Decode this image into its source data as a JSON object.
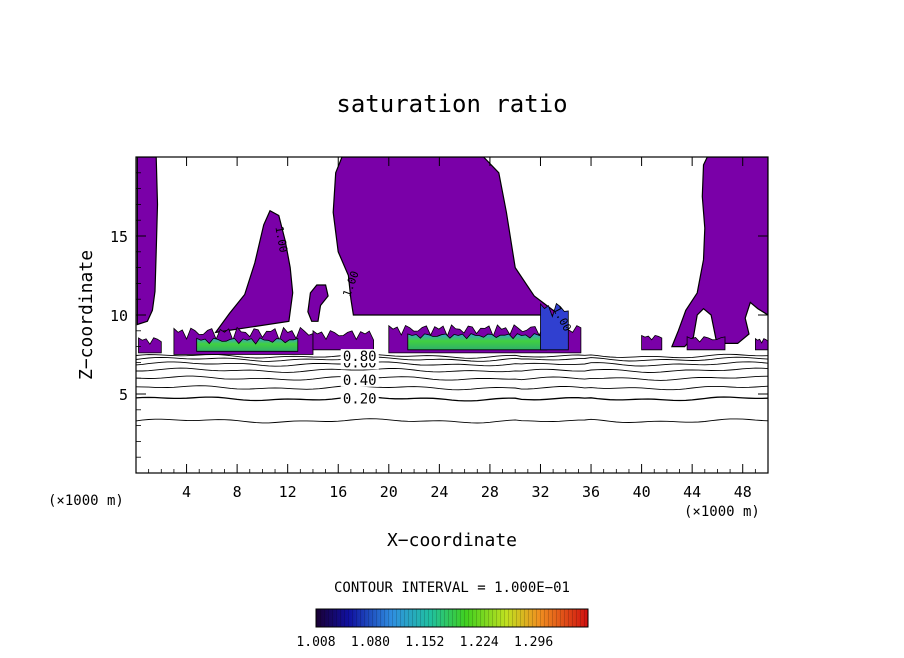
{
  "chart_data": {
    "type": "contour",
    "title": "saturation ratio",
    "xlabel": "X−coordinate",
    "ylabel": "Z−coordinate",
    "x_unit_left": "(×1000 m)",
    "x_unit_right": "(×1000 m)",
    "xlim": [
      0,
      50
    ],
    "ylim": [
      0,
      20
    ],
    "x_ticks": [
      4,
      8,
      12,
      16,
      20,
      24,
      28,
      32,
      36,
      40,
      44,
      48
    ],
    "x_tick_labels": [
      "4",
      "8",
      "12",
      "16",
      "20",
      "24",
      "28",
      "32",
      "36",
      "40",
      "44",
      "48"
    ],
    "y_ticks": [
      5,
      10,
      15
    ],
    "y_tick_labels": [
      "5",
      "10",
      "15"
    ],
    "contour_interval_label": "CONTOUR INTERVAL = 1.000E−01",
    "contour_labels": [
      {
        "text": "0.20",
        "x": 17.7,
        "z": 4.7
      },
      {
        "text": "0.40",
        "x": 17.7,
        "z": 5.9
      },
      {
        "text": "0.60",
        "x": 17.7,
        "z": 7.0
      },
      {
        "text": "0.80",
        "x": 17.7,
        "z": 7.4
      },
      {
        "text": "1.00",
        "x": 11.6,
        "z": 14.8
      },
      {
        "text": "1.00",
        "x": 16.9,
        "z": 12.0
      },
      {
        "text": "1.00",
        "x": 33.8,
        "z": 9.8
      }
    ],
    "contour_levels": [
      {
        "level": 0.1,
        "z": 3.3
      },
      {
        "level": 0.2,
        "z": 4.7
      },
      {
        "level": 0.3,
        "z": 5.4
      },
      {
        "level": 0.4,
        "z": 6.0
      },
      {
        "level": 0.5,
        "z": 6.5
      },
      {
        "level": 0.6,
        "z": 6.9
      },
      {
        "level": 0.7,
        "z": 7.2
      },
      {
        "level": 0.8,
        "z": 7.4
      }
    ],
    "saturated_regions": [
      {
        "points": [
          [
            0.1,
            20
          ],
          [
            1.6,
            20
          ],
          [
            1.7,
            17
          ],
          [
            1.6,
            14
          ],
          [
            1.5,
            11.5
          ],
          [
            1.3,
            10.3
          ],
          [
            0.9,
            9.6
          ],
          [
            0.1,
            9.4
          ]
        ]
      },
      {
        "points": [
          [
            33.5,
            10
          ],
          [
            31.5,
            11.2
          ],
          [
            30,
            13
          ],
          [
            29.3,
            16.5
          ],
          [
            28.7,
            19
          ],
          [
            27.5,
            20
          ],
          [
            16.3,
            20
          ],
          [
            15.8,
            19
          ],
          [
            15.6,
            16.5
          ],
          [
            16,
            14
          ],
          [
            16.8,
            12.5
          ],
          [
            17,
            11
          ],
          [
            17.2,
            10
          ]
        ]
      },
      {
        "points": [
          [
            12.1,
            9.6
          ],
          [
            12.4,
            11.4
          ],
          [
            12.2,
            13
          ],
          [
            11.8,
            14.7
          ],
          [
            11.3,
            16.3
          ],
          [
            10.6,
            16.6
          ],
          [
            10.1,
            15.7
          ],
          [
            9.4,
            13.3
          ],
          [
            8.6,
            11.3
          ],
          [
            7.4,
            10.1
          ],
          [
            6.3,
            8.9
          ]
        ]
      },
      {
        "points": [
          [
            13.9,
            9.6
          ],
          [
            13.6,
            10.2
          ],
          [
            13.8,
            11.4
          ],
          [
            14.3,
            11.9
          ],
          [
            15,
            11.9
          ],
          [
            15.2,
            11.2
          ],
          [
            14.6,
            10.6
          ],
          [
            14.4,
            9.6
          ]
        ]
      },
      {
        "points": [
          [
            42.4,
            8
          ],
          [
            42.9,
            9
          ],
          [
            43.5,
            10.3
          ],
          [
            44.4,
            11.4
          ],
          [
            44.9,
            13.5
          ],
          [
            45,
            15.5
          ],
          [
            44.8,
            17.5
          ],
          [
            44.9,
            19.5
          ],
          [
            45.2,
            20
          ],
          [
            50,
            20
          ],
          [
            50,
            10
          ],
          [
            49.2,
            10.4
          ],
          [
            48.6,
            10.8
          ],
          [
            48.2,
            9.8
          ],
          [
            48.5,
            8.8
          ],
          [
            47.6,
            8.2
          ],
          [
            46.6,
            8.2
          ],
          [
            45.9,
            8.4
          ],
          [
            45.5,
            10
          ],
          [
            44.9,
            10.4
          ],
          [
            44.4,
            10
          ],
          [
            44.1,
            8.6
          ],
          [
            43.4,
            8
          ]
        ]
      }
    ],
    "colorbar": {
      "min": 1.008,
      "max": 1.368,
      "tick_labels": [
        "1.008",
        "1.080",
        "1.152",
        "1.224",
        "1.296"
      ]
    }
  }
}
